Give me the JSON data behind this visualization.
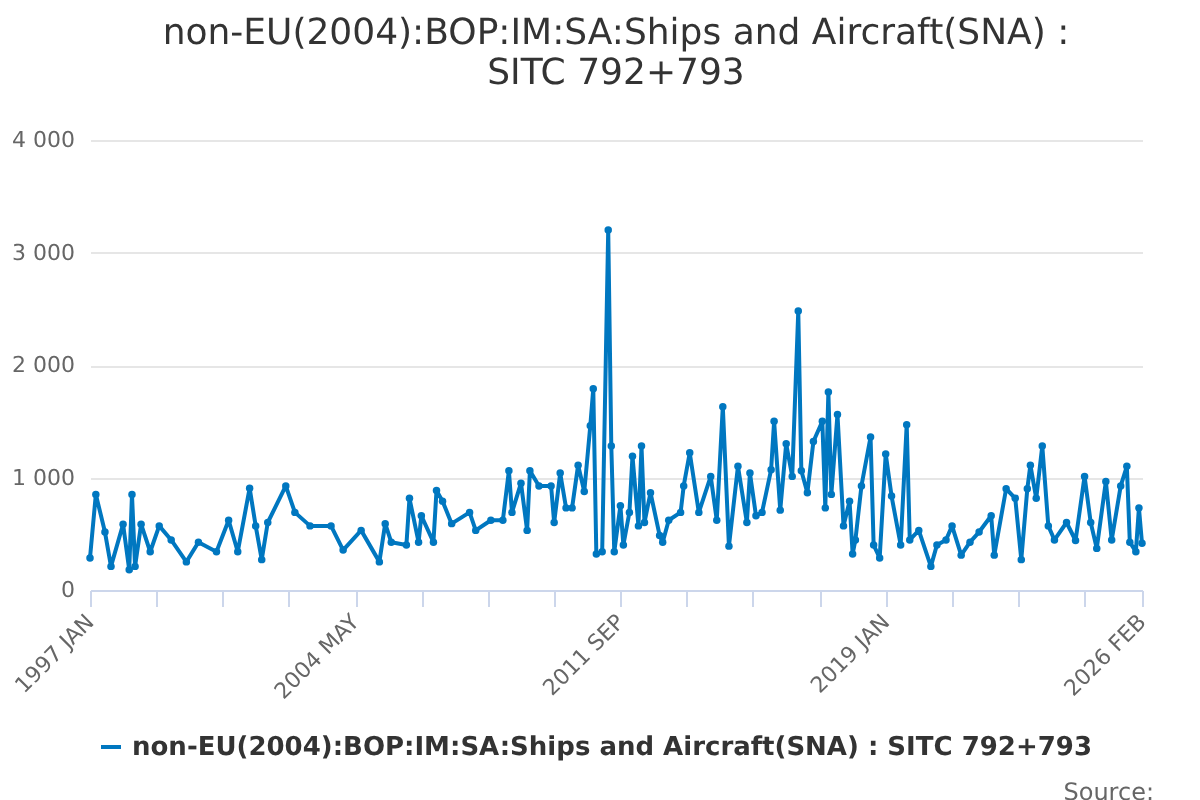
{
  "chart_data": {
    "type": "line",
    "title": "non-EU(2004):BOP:IM:SA:Ships and Aircraft(SNA) : SITC 792+793",
    "x": [
      "1997-01",
      "1997-03",
      "1997-06",
      "1997-08",
      "1997-12",
      "1998-02",
      "1998-03",
      "1998-04",
      "1998-06",
      "1998-09",
      "1998-12",
      "1999-04",
      "1999-09",
      "2000-01",
      "2000-07",
      "2000-11",
      "2001-02",
      "2001-06",
      "2001-08",
      "2001-10",
      "2001-12",
      "2002-06",
      "2002-09",
      "2003-02",
      "2003-09",
      "2004-01",
      "2004-07",
      "2005-01",
      "2005-03",
      "2005-05",
      "2005-10",
      "2005-11",
      "2006-02",
      "2006-03",
      "2006-07",
      "2006-08",
      "2006-10",
      "2007-01",
      "2007-07",
      "2007-09",
      "2008-02",
      "2008-06",
      "2008-08",
      "2008-09",
      "2008-12",
      "2009-02",
      "2009-03",
      "2009-06",
      "2009-10",
      "2009-11",
      "2010-01",
      "2010-03",
      "2010-05",
      "2010-07",
      "2010-09",
      "2010-11",
      "2010-12",
      "2011-01",
      "2011-03",
      "2011-05",
      "2011-06",
      "2011-07",
      "2011-09",
      "2011-10",
      "2011-12",
      "2012-01",
      "2012-03",
      "2012-04",
      "2012-05",
      "2012-07",
      "2012-10",
      "2012-11",
      "2013-01",
      "2013-05",
      "2013-06",
      "2013-08",
      "2013-11",
      "2014-03",
      "2014-05",
      "2014-07",
      "2014-09",
      "2014-12",
      "2015-03",
      "2015-04",
      "2015-06",
      "2015-08",
      "2015-11",
      "2015-12",
      "2016-02",
      "2016-04",
      "2016-06",
      "2016-08",
      "2016-09",
      "2016-11",
      "2017-01",
      "2017-04",
      "2017-05",
      "2017-06",
      "2017-07",
      "2017-09",
      "2017-11",
      "2018-01",
      "2018-02",
      "2018-03",
      "2018-05",
      "2018-08",
      "2018-09",
      "2018-11",
      "2019-01",
      "2019-03",
      "2019-06",
      "2019-08",
      "2019-09",
      "2019-12",
      "2020-04",
      "2020-06",
      "2020-09",
      "2020-11",
      "2021-02",
      "2021-05",
      "2021-08",
      "2021-12",
      "2022-01",
      "2022-05",
      "2022-08",
      "2022-10",
      "2022-12",
      "2023-01",
      "2023-03",
      "2023-05",
      "2023-07",
      "2023-09",
      "2024-01",
      "2024-04",
      "2024-07",
      "2024-09",
      "2024-11",
      "2025-02",
      "2025-04",
      "2025-07",
      "2025-09",
      "2025-10",
      "2025-12",
      "2026-01",
      "2026-02"
    ],
    "series": [
      {
        "name": "non-EU(2004):BOP:IM:SA:Ships and Aircraft(SNA) : SITC 792+793",
        "color": "#0077c0",
        "values": [
          285,
          850,
          515,
          210,
          585,
          180,
          850,
          210,
          585,
          340,
          570,
          445,
          250,
          425,
          340,
          620,
          340,
          905,
          570,
          270,
          600,
          925,
          690,
          570,
          570,
          355,
          530,
          250,
          590,
          425,
          400,
          815,
          425,
          660,
          425,
          885,
          790,
          590,
          690,
          530,
          620,
          620,
          1060,
          690,
          950,
          530,
          1060,
          925,
          925,
          600,
          1040,
          730,
          730,
          1110,
          875,
          1460,
          1790,
          320,
          340,
          3200,
          1280,
          340,
          750,
          400,
          690,
          1190,
          570,
          1280,
          600,
          865,
          485,
          425,
          620,
          690,
          925,
          1220,
          690,
          1010,
          620,
          1630,
          390,
          1100,
          600,
          1040,
          660,
          690,
          1070,
          1500,
          710,
          1300,
          1010,
          2480,
          1060,
          865,
          1320,
          1500,
          730,
          1760,
          850,
          1560,
          570,
          790,
          320,
          445,
          925,
          1360,
          400,
          285,
          1210,
          835,
          400,
          1470,
          445,
          530,
          210,
          400,
          445,
          570,
          310,
          425,
          515,
          660,
          310,
          900,
          815,
          270,
          900,
          1110,
          815,
          1280,
          570,
          445,
          600,
          440,
          1010,
          600,
          370,
          965,
          445,
          925,
          1100,
          425,
          340,
          730,
          415
        ]
      }
    ],
    "xlim": [
      "1997-01",
      "2026-02"
    ],
    "xticks": [
      {
        "value": "1997-01",
        "label": "1997 JAN"
      },
      {
        "value": "1998-11",
        "label": null
      },
      {
        "value": "2000-09",
        "label": null
      },
      {
        "value": "2002-07",
        "label": null
      },
      {
        "value": "2004-05",
        "label": "2004 MAY"
      },
      {
        "value": "2006-03",
        "label": null
      },
      {
        "value": "2008-01",
        "label": null
      },
      {
        "value": "2009-11",
        "label": null
      },
      {
        "value": "2011-09",
        "label": "2011 SEP"
      },
      {
        "value": "2013-07",
        "label": null
      },
      {
        "value": "2015-05",
        "label": null
      },
      {
        "value": "2017-03",
        "label": null
      },
      {
        "value": "2019-01",
        "label": "2019 JAN"
      },
      {
        "value": "2020-11",
        "label": null
      },
      {
        "value": "2022-09",
        "label": null
      },
      {
        "value": "2024-07",
        "label": null
      },
      {
        "value": "2026-02",
        "label": "2026 FEB"
      }
    ],
    "ylim": [
      0,
      4000
    ],
    "yticks": [
      0,
      {
        "value": 1000,
        "label": "1 000"
      },
      {
        "value": 2000,
        "label": "2 000"
      },
      {
        "value": 3000,
        "label": "3 000"
      },
      {
        "value": 4000,
        "label": "4 000"
      }
    ],
    "grid": "y",
    "legend": "bottom",
    "marker": "circle",
    "line_style": "solid",
    "annotations": [
      "Source:"
    ]
  }
}
